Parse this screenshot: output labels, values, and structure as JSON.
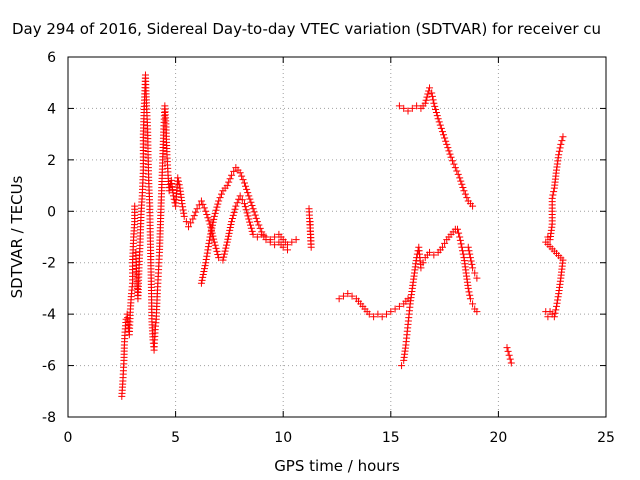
{
  "chart_data": {
    "type": "scatter",
    "title": "Day 294 of 2016, Sidereal Day-to-day VTEC variation (SDTVAR) for receiver cu",
    "xlabel": "GPS time / hours",
    "ylabel": "SDTVAR / TECUs",
    "xlim": [
      0,
      25
    ],
    "ylim": [
      -8,
      6
    ],
    "xticks": [
      0,
      5,
      10,
      15,
      20,
      25
    ],
    "yticks": [
      -8,
      -6,
      -4,
      -2,
      0,
      2,
      4,
      6
    ],
    "grid": true,
    "marker": "+",
    "marker_color": "#ff0000",
    "series": [
      {
        "values": [
          [
            2.5,
            -7.2
          ],
          [
            2.55,
            -6.6
          ],
          [
            2.6,
            -5.8
          ],
          [
            2.62,
            -5.2
          ],
          [
            2.65,
            -4.7
          ],
          [
            2.7,
            -4.2
          ],
          [
            2.75,
            -4.0
          ],
          [
            2.8,
            -4.4
          ],
          [
            2.85,
            -4.8
          ],
          [
            2.9,
            -3.8
          ],
          [
            2.95,
            -3.2
          ],
          [
            3.0,
            -2.8
          ],
          [
            3.0,
            -2.0
          ],
          [
            3.05,
            -1.0
          ],
          [
            3.1,
            -0.4
          ],
          [
            3.1,
            0.2
          ],
          [
            3.15,
            -1.6
          ],
          [
            3.2,
            -2.6
          ],
          [
            3.25,
            -3.4
          ],
          [
            3.3,
            -2.2
          ],
          [
            3.35,
            -1.2
          ],
          [
            3.4,
            0.0
          ],
          [
            3.45,
            0.6
          ],
          [
            3.5,
            1.6
          ],
          [
            3.5,
            3.0
          ],
          [
            3.55,
            4.2
          ],
          [
            3.6,
            5.3
          ],
          [
            3.62,
            4.8
          ],
          [
            3.65,
            4.1
          ],
          [
            3.7,
            3.2
          ],
          [
            3.72,
            2.2
          ],
          [
            3.75,
            1.2
          ],
          [
            3.8,
            0.2
          ],
          [
            3.82,
            -0.8
          ],
          [
            3.85,
            -2.0
          ],
          [
            3.88,
            -3.2
          ],
          [
            3.9,
            -4.3
          ],
          [
            3.95,
            -5.0
          ],
          [
            4.0,
            -5.4
          ],
          [
            4.05,
            -4.6
          ],
          [
            4.1,
            -4.2
          ],
          [
            4.15,
            -3.2
          ],
          [
            4.2,
            -2.4
          ],
          [
            4.25,
            -1.6
          ],
          [
            4.3,
            -0.4
          ],
          [
            4.35,
            0.8
          ],
          [
            4.4,
            2.0
          ],
          [
            4.45,
            3.2
          ],
          [
            4.5,
            4.1
          ],
          [
            4.55,
            3.4
          ],
          [
            4.6,
            2.2
          ],
          [
            4.65,
            1.4
          ],
          [
            4.7,
            0.8
          ],
          [
            4.8,
            1.2
          ],
          [
            4.9,
            0.6
          ],
          [
            5.0,
            0.2
          ],
          [
            5.1,
            1.3
          ],
          [
            5.2,
            0.9
          ],
          [
            5.3,
            0.3
          ],
          [
            5.4,
            -0.2
          ],
          [
            5.5,
            -0.4
          ],
          [
            5.6,
            -0.6
          ],
          [
            5.8,
            -0.3
          ],
          [
            6.0,
            0.1
          ],
          [
            6.2,
            0.4
          ],
          [
            6.4,
            0.0
          ],
          [
            6.6,
            -0.5
          ],
          [
            6.8,
            -1.2
          ],
          [
            7.0,
            -1.8
          ],
          [
            7.2,
            -1.9
          ],
          [
            7.4,
            -1.2
          ],
          [
            7.6,
            -0.4
          ],
          [
            7.8,
            0.2
          ],
          [
            8.0,
            0.6
          ],
          [
            8.2,
            0.3
          ],
          [
            8.4,
            -0.3
          ],
          [
            8.6,
            -0.9
          ],
          [
            8.8,
            -1.0
          ],
          [
            9.0,
            -0.9
          ],
          [
            9.2,
            -1.0
          ],
          [
            9.4,
            -1.1
          ],
          [
            9.6,
            -1.0
          ],
          [
            9.8,
            -0.9
          ],
          [
            10.0,
            -1.1
          ],
          [
            10.2,
            -1.3
          ],
          [
            10.4,
            -1.2
          ],
          [
            10.6,
            -1.1
          ],
          [
            6.2,
            -2.8
          ],
          [
            6.4,
            -2.0
          ],
          [
            6.6,
            -1.0
          ],
          [
            6.8,
            -0.2
          ],
          [
            7.0,
            0.4
          ],
          [
            7.2,
            0.8
          ],
          [
            7.4,
            1.0
          ],
          [
            7.6,
            1.4
          ],
          [
            7.8,
            1.7
          ],
          [
            8.0,
            1.5
          ],
          [
            8.2,
            1.1
          ],
          [
            8.4,
            0.6
          ],
          [
            8.6,
            0.1
          ],
          [
            8.8,
            -0.4
          ],
          [
            9.0,
            -0.8
          ],
          [
            9.2,
            -1.1
          ],
          [
            9.4,
            -1.2
          ],
          [
            9.6,
            -1.3
          ],
          [
            9.8,
            -1.2
          ],
          [
            10.0,
            -1.4
          ],
          [
            10.2,
            -1.5
          ],
          [
            11.2,
            0.1
          ],
          [
            11.3,
            -1.4
          ],
          [
            11.25,
            -0.4
          ],
          [
            12.6,
            -3.4
          ],
          [
            12.8,
            -3.3
          ],
          [
            13.0,
            -3.2
          ],
          [
            13.2,
            -3.3
          ],
          [
            13.4,
            -3.4
          ],
          [
            13.6,
            -3.6
          ],
          [
            13.8,
            -3.8
          ],
          [
            14.0,
            -4.0
          ],
          [
            14.2,
            -4.1
          ],
          [
            14.4,
            -4.0
          ],
          [
            14.6,
            -4.1
          ],
          [
            14.8,
            -4.0
          ],
          [
            15.0,
            -3.9
          ],
          [
            15.2,
            -3.8
          ],
          [
            15.4,
            -3.7
          ],
          [
            15.6,
            -3.6
          ],
          [
            15.8,
            -3.4
          ],
          [
            15.5,
            -6.0
          ],
          [
            15.6,
            -5.8
          ],
          [
            15.7,
            -5.2
          ],
          [
            15.8,
            -4.4
          ],
          [
            15.9,
            -3.6
          ],
          [
            16.0,
            -3.0
          ],
          [
            16.1,
            -2.4
          ],
          [
            16.2,
            -1.8
          ],
          [
            16.3,
            -1.4
          ],
          [
            16.4,
            -2.2
          ],
          [
            16.5,
            -2.0
          ],
          [
            16.6,
            -1.8
          ],
          [
            16.7,
            -1.7
          ],
          [
            16.8,
            -1.6
          ],
          [
            17.0,
            -1.7
          ],
          [
            17.2,
            -1.6
          ],
          [
            17.4,
            -1.4
          ],
          [
            17.6,
            -1.1
          ],
          [
            17.8,
            -0.9
          ],
          [
            18.0,
            -0.7
          ],
          [
            18.1,
            -0.7
          ],
          [
            18.2,
            -1.0
          ],
          [
            18.3,
            -1.4
          ],
          [
            18.4,
            -1.8
          ],
          [
            18.5,
            -2.4
          ],
          [
            18.6,
            -3.0
          ],
          [
            18.7,
            -3.4
          ],
          [
            18.8,
            -3.6
          ],
          [
            18.9,
            -3.8
          ],
          [
            19.0,
            -3.9
          ],
          [
            18.6,
            -1.4
          ],
          [
            18.7,
            -1.8
          ],
          [
            18.8,
            -2.2
          ],
          [
            18.9,
            -2.4
          ],
          [
            19.0,
            -2.6
          ],
          [
            15.4,
            4.1
          ],
          [
            15.6,
            4.0
          ],
          [
            15.8,
            3.9
          ],
          [
            16.0,
            4.0
          ],
          [
            16.2,
            4.1
          ],
          [
            16.4,
            4.0
          ],
          [
            16.6,
            4.2
          ],
          [
            16.8,
            4.8
          ],
          [
            16.9,
            4.6
          ],
          [
            17.0,
            4.2
          ],
          [
            17.2,
            3.6
          ],
          [
            17.4,
            3.1
          ],
          [
            17.6,
            2.6
          ],
          [
            17.8,
            2.1
          ],
          [
            18.0,
            1.7
          ],
          [
            18.2,
            1.3
          ],
          [
            18.4,
            0.8
          ],
          [
            18.6,
            0.4
          ],
          [
            18.8,
            0.2
          ],
          [
            20.4,
            -5.3
          ],
          [
            20.5,
            -5.6
          ],
          [
            20.6,
            -5.9
          ],
          [
            22.2,
            -3.9
          ],
          [
            22.3,
            -4.1
          ],
          [
            22.4,
            -3.9
          ],
          [
            22.5,
            -4.0
          ],
          [
            22.6,
            -4.1
          ],
          [
            22.7,
            -3.7
          ],
          [
            22.8,
            -3.2
          ],
          [
            22.9,
            -2.6
          ],
          [
            23.0,
            -1.9
          ],
          [
            22.2,
            -1.2
          ],
          [
            22.3,
            -1.0
          ],
          [
            22.4,
            -1.1
          ],
          [
            22.5,
            -0.5
          ],
          [
            22.5,
            0.5
          ],
          [
            22.6,
            0.9
          ],
          [
            22.7,
            1.6
          ],
          [
            22.8,
            2.2
          ],
          [
            22.9,
            2.6
          ],
          [
            23.0,
            2.9
          ]
        ]
      }
    ]
  }
}
